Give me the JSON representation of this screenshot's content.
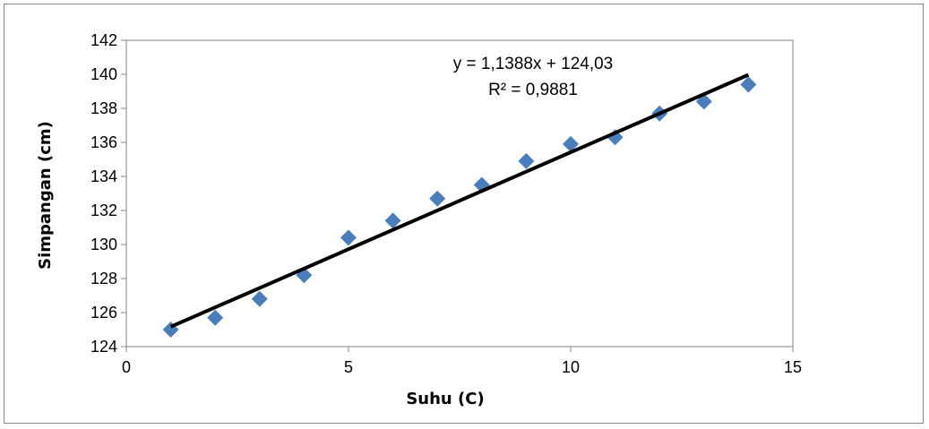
{
  "chart_data": {
    "type": "scatter",
    "title": "",
    "xlabel": "Suhu (C)",
    "ylabel": "Simpangan (cm)",
    "xlim": [
      0,
      15
    ],
    "ylim": [
      124,
      142
    ],
    "x_ticks": [
      "0",
      "5",
      "10",
      "15"
    ],
    "y_ticks": [
      "124",
      "126",
      "128",
      "130",
      "132",
      "134",
      "136",
      "138",
      "140",
      "142"
    ],
    "grid": false,
    "legend": "none",
    "marker": "diamond",
    "marker_color": "#4a7ebb",
    "trendline_color": "#000000",
    "series": [
      {
        "x": [
          1,
          2,
          3,
          4,
          5,
          6,
          7,
          8,
          9,
          10,
          11,
          12,
          13,
          14
        ],
        "y": [
          125.0,
          125.7,
          126.8,
          128.2,
          130.4,
          131.4,
          132.7,
          133.5,
          134.9,
          135.9,
          136.3,
          137.7,
          138.4,
          139.4
        ]
      }
    ],
    "trendline": {
      "slope": 1.1388,
      "intercept": 124.03,
      "x_range": [
        1,
        14
      ]
    },
    "annotations": {
      "equation": "y = 1,1388x + 124,03",
      "r_squared": "R² = 0,9881"
    }
  }
}
